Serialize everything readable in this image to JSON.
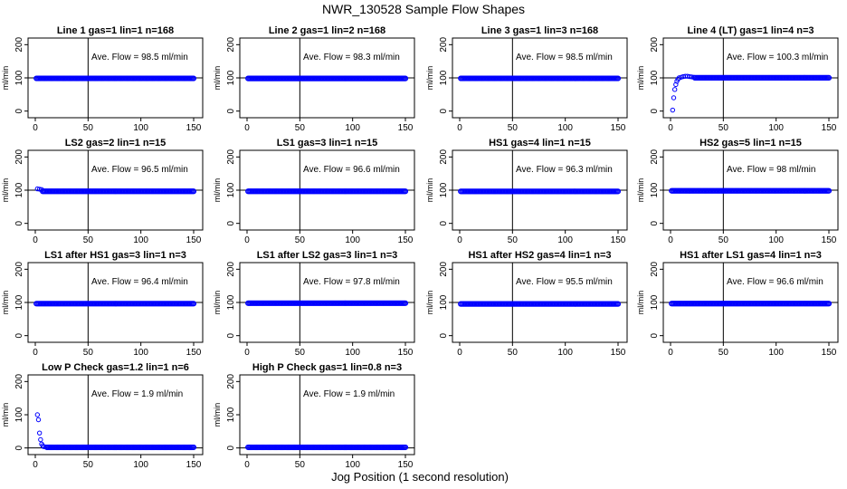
{
  "title": "NWR_130528  Sample Flow Shapes",
  "xlabel": "Jog Position (1 second resolution)",
  "colors": {
    "points": "#0000ff",
    "axis": "#000000",
    "reference_line": "#000000"
  },
  "chart_data": [
    {
      "type": "scatter",
      "title": "Line 1 gas=1 lin=1 n=168",
      "ylabel": "ml/min",
      "annotation": "Ave. Flow = 98.5  ml/min",
      "xlim": [
        0,
        150
      ],
      "ylim": [
        -20,
        220
      ],
      "xticks": [
        0,
        50,
        100,
        150
      ],
      "yticks": [
        0,
        100,
        200
      ],
      "hline": 100,
      "vline": 50,
      "shape": "flat",
      "level": 98.5,
      "x_range": [
        1,
        150
      ]
    },
    {
      "type": "scatter",
      "title": "Line 2 gas=1 lin=2 n=168",
      "ylabel": "ml/min",
      "annotation": "Ave. Flow = 98.3  ml/min",
      "xlim": [
        0,
        150
      ],
      "ylim": [
        -20,
        220
      ],
      "xticks": [
        0,
        50,
        100,
        150
      ],
      "yticks": [
        0,
        100,
        200
      ],
      "hline": 100,
      "vline": 50,
      "shape": "flat",
      "level": 98.3,
      "x_range": [
        1,
        150
      ]
    },
    {
      "type": "scatter",
      "title": "Line 3 gas=1 lin=3 n=168",
      "ylabel": "ml/min",
      "annotation": "Ave. Flow = 98.5  ml/min",
      "xlim": [
        0,
        150
      ],
      "ylim": [
        -20,
        220
      ],
      "xticks": [
        0,
        50,
        100,
        150
      ],
      "yticks": [
        0,
        100,
        200
      ],
      "hline": 100,
      "vline": 50,
      "shape": "flat",
      "level": 98.5,
      "x_range": [
        1,
        150
      ]
    },
    {
      "type": "scatter",
      "title": "Line 4 (LT) gas=1 lin=4 n=3",
      "ylabel": "ml/min",
      "annotation": "Ave. Flow = 100.3  ml/min",
      "xlim": [
        0,
        150
      ],
      "ylim": [
        -20,
        220
      ],
      "xticks": [
        0,
        50,
        100,
        150
      ],
      "yticks": [
        0,
        100,
        200
      ],
      "hline": 100,
      "vline": 50,
      "shape": "rise",
      "level": 100.3,
      "x_range": [
        1,
        150
      ],
      "initial_points": [
        {
          "x": 2,
          "y": 3
        },
        {
          "x": 3,
          "y": 40
        },
        {
          "x": 4,
          "y": 65
        },
        {
          "x": 5,
          "y": 80
        },
        {
          "x": 6,
          "y": 90
        },
        {
          "x": 7,
          "y": 96
        },
        {
          "x": 8,
          "y": 100
        },
        {
          "x": 10,
          "y": 102
        },
        {
          "x": 12,
          "y": 104
        },
        {
          "x": 14,
          "y": 105
        },
        {
          "x": 16,
          "y": 105
        },
        {
          "x": 18,
          "y": 104
        },
        {
          "x": 20,
          "y": 103
        },
        {
          "x": 22,
          "y": 102
        }
      ]
    },
    {
      "type": "scatter",
      "title": "LS2 gas=2 lin=1 n=15",
      "ylabel": "ml/min",
      "annotation": "Ave. Flow = 96.5  ml/min",
      "xlim": [
        0,
        150
      ],
      "ylim": [
        -20,
        220
      ],
      "xticks": [
        0,
        50,
        100,
        150
      ],
      "yticks": [
        0,
        100,
        200
      ],
      "hline": 100,
      "vline": 50,
      "shape": "flat",
      "level": 96.5,
      "x_range": [
        1,
        150
      ],
      "initial_points": [
        {
          "x": 2,
          "y": 104
        },
        {
          "x": 4,
          "y": 103
        },
        {
          "x": 6,
          "y": 102
        }
      ]
    },
    {
      "type": "scatter",
      "title": "LS1 gas=3 lin=1 n=15",
      "ylabel": "ml/min",
      "annotation": "Ave. Flow = 96.6  ml/min",
      "xlim": [
        0,
        150
      ],
      "ylim": [
        -20,
        220
      ],
      "xticks": [
        0,
        50,
        100,
        150
      ],
      "yticks": [
        0,
        100,
        200
      ],
      "hline": 100,
      "vline": 50,
      "shape": "flat",
      "level": 96.6,
      "x_range": [
        1,
        150
      ]
    },
    {
      "type": "scatter",
      "title": "HS1 gas=4 lin=1 n=15",
      "ylabel": "ml/min",
      "annotation": "Ave. Flow = 96.3  ml/min",
      "xlim": [
        0,
        150
      ],
      "ylim": [
        -20,
        220
      ],
      "xticks": [
        0,
        50,
        100,
        150
      ],
      "yticks": [
        0,
        100,
        200
      ],
      "hline": 100,
      "vline": 50,
      "shape": "flat",
      "level": 96.3,
      "x_range": [
        1,
        150
      ]
    },
    {
      "type": "scatter",
      "title": "HS2 gas=5 lin=1 n=15",
      "ylabel": "ml/min",
      "annotation": "Ave. Flow = 98  ml/min",
      "xlim": [
        0,
        150
      ],
      "ylim": [
        -20,
        220
      ],
      "xticks": [
        0,
        50,
        100,
        150
      ],
      "yticks": [
        0,
        100,
        200
      ],
      "hline": 100,
      "vline": 50,
      "shape": "flat",
      "level": 98,
      "x_range": [
        1,
        150
      ]
    },
    {
      "type": "scatter",
      "title": "LS1 after HS1 gas=3 lin=1 n=3",
      "ylabel": "ml/min",
      "annotation": "Ave. Flow = 96.4  ml/min",
      "xlim": [
        0,
        150
      ],
      "ylim": [
        -20,
        220
      ],
      "xticks": [
        0,
        50,
        100,
        150
      ],
      "yticks": [
        0,
        100,
        200
      ],
      "hline": 100,
      "vline": 50,
      "shape": "flat",
      "level": 96.4,
      "x_range": [
        1,
        150
      ]
    },
    {
      "type": "scatter",
      "title": "LS1 after LS2 gas=3 lin=1 n=3",
      "ylabel": "ml/min",
      "annotation": "Ave. Flow = 97.8  ml/min",
      "xlim": [
        0,
        150
      ],
      "ylim": [
        -20,
        220
      ],
      "xticks": [
        0,
        50,
        100,
        150
      ],
      "yticks": [
        0,
        100,
        200
      ],
      "hline": 100,
      "vline": 50,
      "shape": "flat",
      "level": 97.8,
      "x_range": [
        1,
        150
      ]
    },
    {
      "type": "scatter",
      "title": "HS1 after HS2 gas=4 lin=1 n=3",
      "ylabel": "ml/min",
      "annotation": "Ave. Flow = 95.5  ml/min",
      "xlim": [
        0,
        150
      ],
      "ylim": [
        -20,
        220
      ],
      "xticks": [
        0,
        50,
        100,
        150
      ],
      "yticks": [
        0,
        100,
        200
      ],
      "hline": 100,
      "vline": 50,
      "shape": "flat",
      "level": 95.5,
      "x_range": [
        1,
        150
      ]
    },
    {
      "type": "scatter",
      "title": "HS1 after LS1 gas=4 lin=1 n=3",
      "ylabel": "ml/min",
      "annotation": "Ave. Flow = 96.6  ml/min",
      "xlim": [
        0,
        150
      ],
      "ylim": [
        -20,
        220
      ],
      "xticks": [
        0,
        50,
        100,
        150
      ],
      "yticks": [
        0,
        100,
        200
      ],
      "hline": 100,
      "vline": 50,
      "shape": "flat",
      "level": 96.6,
      "x_range": [
        1,
        150
      ]
    },
    {
      "type": "scatter",
      "title": "Low P Check gas=1.2 lin=1 n=6",
      "ylabel": "ml/min",
      "annotation": "Ave. Flow = 1.9  ml/min",
      "xlim": [
        0,
        150
      ],
      "ylim": [
        -20,
        220
      ],
      "xticks": [
        0,
        50,
        100,
        150
      ],
      "yticks": [
        0,
        100,
        200
      ],
      "hline": 0,
      "vline": 50,
      "shape": "decay",
      "level": 1.9,
      "x_range": [
        1,
        150
      ],
      "initial_points": [
        {
          "x": 2,
          "y": 100
        },
        {
          "x": 3,
          "y": 85
        },
        {
          "x": 4,
          "y": 45
        },
        {
          "x": 5,
          "y": 25
        },
        {
          "x": 6,
          "y": 12
        },
        {
          "x": 7,
          "y": 7
        },
        {
          "x": 8,
          "y": 4
        },
        {
          "x": 10,
          "y": 3
        }
      ]
    },
    {
      "type": "scatter",
      "title": "High P Check gas=1 lin=0.8 n=3",
      "ylabel": "ml/min",
      "annotation": "Ave. Flow = 1.9  ml/min",
      "xlim": [
        0,
        150
      ],
      "ylim": [
        -20,
        220
      ],
      "xticks": [
        0,
        50,
        100,
        150
      ],
      "yticks": [
        0,
        100,
        200
      ],
      "hline": 0,
      "vline": 50,
      "shape": "flat",
      "level": 1.9,
      "x_range": [
        1,
        150
      ]
    }
  ]
}
